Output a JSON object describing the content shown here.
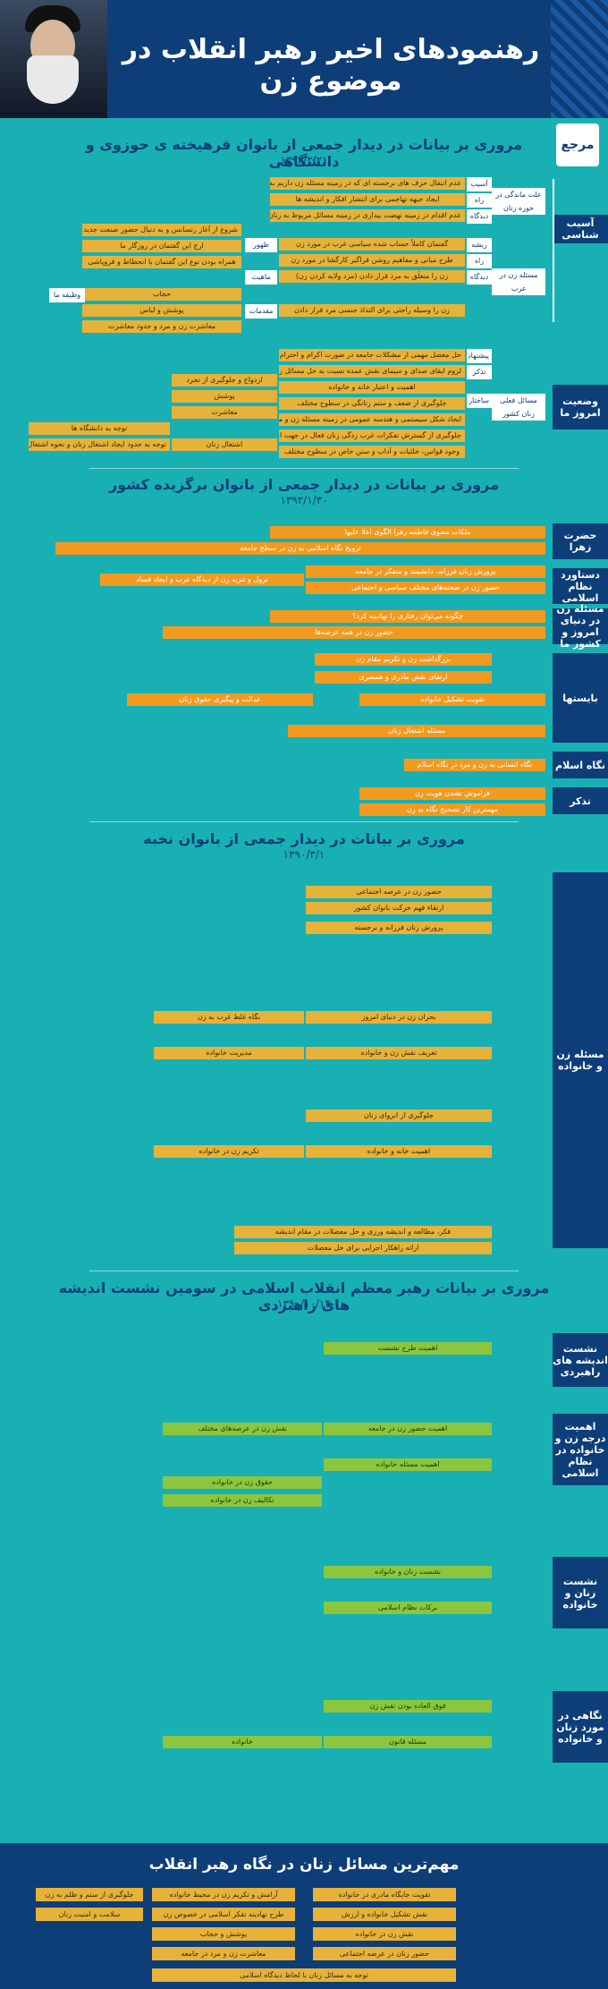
{
  "header": {
    "title": "رهنمودهای اخیر رهبر انقلاب در موضوع زن"
  },
  "logo": {
    "text": "مرجع"
  },
  "s1": {
    "title": "مروری بر بیانات در دیدار جمعی از بانوان فرهیخته ی حوزوی و دانشگاهی",
    "date": "۱۳۹۲/۲/۲۱",
    "cat1": "آسیب شناسی",
    "cat2": "وضعیت امروز ما",
    "sub1": "علت ماندگی در حوزه زنان",
    "sub2": "مسئله زن در غرب",
    "sub3": "مسائل فعلی زنان کشور",
    "items": [
      "عدم انتقال حرف های برجسته ای که در زمینه مسئله زن داریم به دنیا",
      "ایجاد جبهه تهاجمی برای انتشار افکار و اندیشه ها",
      "عدم اقدام در زمینه نهضت بیداری در زمینه مسائل مربوط به زنان",
      "گفتمان کاملاً حساب شده سیاسی غرب در مورد زن",
      "طرح مبانی و مفاهیم روشن فراگیر کارگشا در مورد زن",
      "زن را متعلَق به مرد قرار دادن (مرد ولایه کردن زن)",
      "زن را وسیله راحتی برای التذاذ جنسی مرد قرار دادن",
      "شروع از آغاز رنسانس و به دنبال حضور صنعت جدید در غرب",
      "ارج این گفتمان در روزگار ما",
      "همراه بودن نوع این گفتمان با انحطاط و فروپاشی",
      "حجاب",
      "پوشش و لباس",
      "معاشرت زن و مرد و حدود معاشرت",
      "حل معضل مهمی از مشکلات جامعه در صورت اکرام و احترام زن در خانواده",
      "لزوم ایفای صدای و سیمای نقش عمده نسبت به حل مسائل زنان",
      "اهمیت و اعتبار خانه و خانواده",
      "جلوگیری از ضعف و ستم زنانگی در سطوح مختلف",
      "ایجاد شکل سیستمی و هندسه عمومی در زمینه مسئله زن و مرکز عالی زنان",
      "جلوگیری از گسترش تفکرات غرب زدگی زنان فعال در جهت ابعاد گوناگون",
      "وجود قوانین، خلئیات و آداب و سنن خاص در سطوح مختلف",
      "ازدواج و جلوگیری از تجرد",
      "پوشش",
      "معاشرت",
      "اشتغال زنان",
      "توجه به دانشگاه ها",
      "توجه به حدود ایجاد اشتغال زنان و نحوه اشتغال زنان"
    ],
    "labels": [
      "آسیب",
      "راه حل",
      "دیدگاه",
      "ریشه",
      "ماهیت",
      "مقدمات",
      "ظهور",
      "تذکر",
      "ساختار",
      "پیشنهاد",
      "وظیفه ما"
    ]
  },
  "s2": {
    "title": "مروری بر بیانات در دیدار جمعی از بانوان برگزیده کشور",
    "date": "۱۳۹۲/۱/۳۰",
    "cats": [
      "حضرت زهرا",
      "دستاورد نظام اسلامی",
      "مسئله زن در دنیای امروز و کشور ما",
      "بایستها",
      "نگاه اسلام",
      "تذکر"
    ],
    "items": [
      "ملکات معنوی فاطمه زهرا الگوی اعلا علیها",
      "ترویج نگاه اسلامی به زن در سطح جامعه",
      "پرورش زنان فرزانه، دانشمند و متفکر در جامعه",
      "حضور زن در صحنه‌های مختلف سیاسی و اجتماعی",
      "نزول و تنزیه زن از دیدگاه غرب و ایجاد فساد",
      "چگونه می‌توان رفتاری را نهادینه کرد؟",
      "حضور زن در همه عرصه‌ها",
      "بزرگداشت زن و تکریم مقام زن",
      "ارتقای نقش مادری و همسری",
      "تقویت تشکیل خانواده",
      "عدالت و پیگیری حقوق زنان",
      "مسئله اشتغال زنان",
      "نگاه انسانی به زن و مرد در نگاه اسلام",
      "فراموش نشدن هویت زن",
      "مهمترین کار تصحیح نگاه به زن"
    ]
  },
  "s3": {
    "title": "مروری بر بیانات در دیدار جمعی از بانوان نخبه",
    "date": "۱۳۹۰/۳/۱",
    "cat": "مسئله زن و خانواده",
    "items": [
      "حضور زن در عرصه اجتماعی",
      "ارتقاء فهم حرکت بانوان کشور",
      "پرورش زنان فرزانه و برجسته",
      "بحران زن در دنیای امروز",
      "نگاه غلط غرب به زن",
      "تعریف نقش زن و خانواده",
      "مدیریت خانواده",
      "جلوگیری از انزوای زنان",
      "اهمیت خانه و خانواده",
      "تکریم زن در خانواده",
      "فکر، مطالعه و اندیشه ورزی و حل معضلات در مقام اندیشه",
      "ارائه راهکار اجرایی برای حل معضلات"
    ]
  },
  "s4": {
    "title": "مروری بر بیانات رهبر معظم انقلاب اسلامی در سومین نشست اندیشه های راهبردی",
    "date": "۱۳۹۰/۱۰/۱۴",
    "cats": [
      "نشست اندیشه های راهبردی",
      "اهمیت درجه زن و خانواده در نظام اسلامی",
      "نشست زنان و خانواده",
      "نگاهی در مورد زنان و خانواده"
    ],
    "items": [
      "اهمیت طرح نشست",
      "اهمیت حضور زن در جامعه",
      "اهمیت مسئله خانواده",
      "نقش زن در عرصه‌های مختلف",
      "حقوق زن در خانواده",
      "تکالیف زن در خانواده",
      "نشست زنان و خانواده",
      "برکات نظام اسلامی",
      "فوق العاده بودن نقش زن",
      "مسئله قانون",
      "خانواده"
    ]
  },
  "footer": {
    "title": "مهم‌ترین مسائل زنان در نگاه رهبر انقلاب",
    "items": [
      "آرامش و تکریم زن در محیط خانواده",
      "طرح نهادینه تفکر اسلامی در خصوص زن",
      "پوشش و حجاب",
      "معاشرت زن و مرد در جامعه",
      "تقویت جایگاه مادری در خانواده",
      "نقش تشکیل خانواده و ارزش",
      "نقش زن در خانواده",
      "حضور زنان در عرصه اجتماعی",
      "جلوگیری از ستم و ظلم به زن",
      "سلامت و امنیت زنان",
      "توجه به مسائل زنان با لحاظ دیدگاه اسلامی"
    ]
  }
}
